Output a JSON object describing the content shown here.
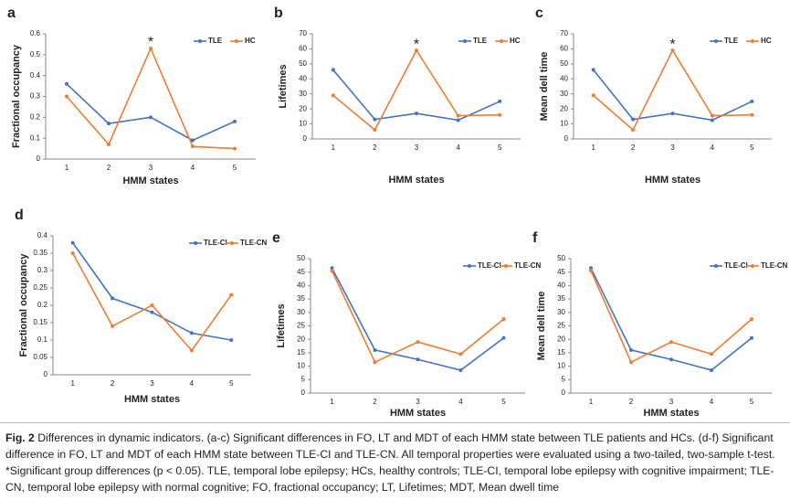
{
  "chart_data": [
    {
      "type": "line",
      "panel": "a",
      "ylabel": "Fractional occupancy",
      "xlabel": "HMM states",
      "categories": [
        "1",
        "2",
        "3",
        "4",
        "5"
      ],
      "series": [
        {
          "name": "TLE",
          "color": "#4472c4",
          "values": [
            0.36,
            0.17,
            0.2,
            0.09,
            0.18
          ]
        },
        {
          "name": "HC",
          "color": "#ed7d31",
          "values": [
            0.3,
            0.07,
            0.53,
            0.06,
            0.05
          ]
        }
      ],
      "ylim": [
        0,
        0.6
      ],
      "yticks": [
        0,
        0.1,
        0.2,
        0.3,
        0.4,
        0.5,
        0.6
      ],
      "legend": "upper right",
      "annotations": [
        {
          "label": "*",
          "category": "3"
        }
      ]
    },
    {
      "type": "line",
      "panel": "b",
      "ylabel": "Lifetimes",
      "xlabel": "HMM states",
      "categories": [
        "1",
        "2",
        "3",
        "4",
        "5"
      ],
      "series": [
        {
          "name": "TLE",
          "color": "#4472c4",
          "values": [
            46,
            13,
            17,
            12.5,
            25
          ]
        },
        {
          "name": "HC",
          "color": "#ed7d31",
          "values": [
            29,
            6,
            59,
            15.5,
            16
          ]
        }
      ],
      "ylim": [
        0,
        70
      ],
      "yticks": [
        0,
        10,
        20,
        30,
        40,
        50,
        60,
        70
      ],
      "legend": "upper right",
      "annotations": [
        {
          "label": "*",
          "category": "3"
        }
      ]
    },
    {
      "type": "line",
      "panel": "c",
      "ylabel": "Mean dell time",
      "xlabel": "HMM states",
      "categories": [
        "1",
        "2",
        "3",
        "4",
        "5"
      ],
      "series": [
        {
          "name": "TLE",
          "color": "#4472c4",
          "values": [
            46,
            13,
            17,
            12.5,
            25
          ]
        },
        {
          "name": "HC",
          "color": "#ed7d31",
          "values": [
            29,
            6,
            59,
            15.5,
            16
          ]
        }
      ],
      "ylim": [
        0,
        70
      ],
      "yticks": [
        0,
        10,
        20,
        30,
        40,
        50,
        60,
        70
      ],
      "legend": "upper right",
      "annotations": [
        {
          "label": "*",
          "category": "3"
        }
      ]
    },
    {
      "type": "line",
      "panel": "d",
      "ylabel": "Fractional occupancy",
      "xlabel": "HMM states",
      "categories": [
        "1",
        "2",
        "3",
        "4",
        "5"
      ],
      "series": [
        {
          "name": "TLE-CI",
          "color": "#4472c4",
          "values": [
            0.38,
            0.22,
            0.18,
            0.12,
            0.1
          ]
        },
        {
          "name": "TLE-CN",
          "color": "#ed7d31",
          "values": [
            0.35,
            0.14,
            0.2,
            0.07,
            0.23
          ]
        }
      ],
      "ylim": [
        0,
        0.4
      ],
      "yticks": [
        0,
        0.05,
        0.1,
        0.15,
        0.2,
        0.25,
        0.3,
        0.35,
        0.4
      ],
      "legend": "upper right"
    },
    {
      "type": "line",
      "panel": "e",
      "ylabel": "Lifetimes",
      "xlabel": "HMM states",
      "categories": [
        "1",
        "2",
        "3",
        "4",
        "5"
      ],
      "series": [
        {
          "name": "TLE-CI",
          "color": "#4472c4",
          "values": [
            46.5,
            16,
            12.5,
            8.5,
            20.5
          ]
        },
        {
          "name": "TLE-CN",
          "color": "#ed7d31",
          "values": [
            45.5,
            11.5,
            19,
            14.5,
            27.5
          ]
        }
      ],
      "ylim": [
        0,
        50
      ],
      "yticks": [
        0,
        5,
        10,
        15,
        20,
        25,
        30,
        35,
        40,
        45,
        50
      ],
      "legend": "upper right"
    },
    {
      "type": "line",
      "panel": "f",
      "ylabel": "Mean dell time",
      "xlabel": "HMM states",
      "categories": [
        "1",
        "2",
        "3",
        "4",
        "5"
      ],
      "series": [
        {
          "name": "TLE-CI",
          "color": "#4472c4",
          "values": [
            46.5,
            16,
            12.5,
            8.5,
            20.5
          ]
        },
        {
          "name": "TLE-CN",
          "color": "#ed7d31",
          "values": [
            45.5,
            11.5,
            19,
            14.5,
            27.5
          ]
        }
      ],
      "ylim": [
        0,
        50
      ],
      "yticks": [
        0,
        5,
        10,
        15,
        20,
        25,
        30,
        35,
        40,
        45,
        50
      ],
      "legend": "upper right"
    }
  ],
  "caption": {
    "label": "Fig. 2",
    "text": "Differences in dynamic indicators. (a-c) Significant differences in FO, LT and MDT of each HMM state between TLE patients and HCs. (d-f) Significant difference in FO, LT and MDT of each HMM state between TLE-CI and TLE-CN. All temporal properties were evaluated using a two-tailed, two-sample t-test. *Significant group differences (p < 0.05). TLE, temporal lobe epilepsy; HCs, healthy controls; TLE-CI, temporal lobe epilepsy with cognitive impairment; TLE-CN, temporal lobe epilepsy with normal cognitive; FO, fractional occupancy; LT, Lifetimes; MDT, Mean dwell time"
  }
}
